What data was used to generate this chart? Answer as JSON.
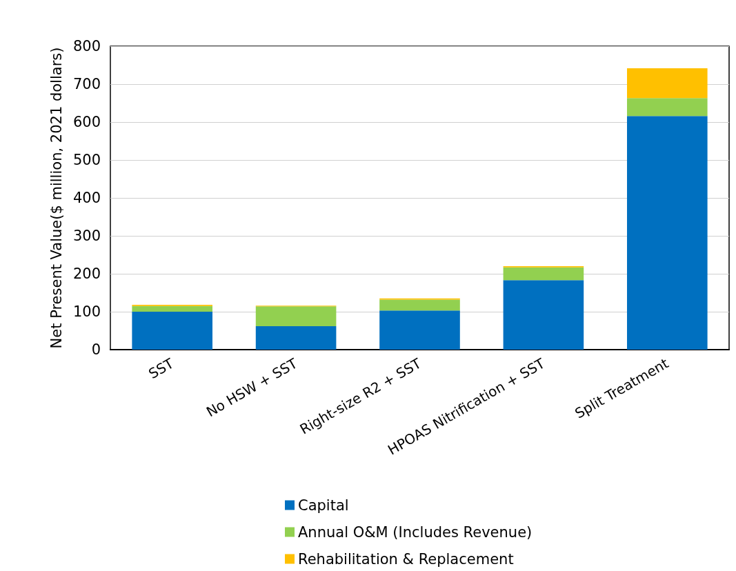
{
  "chart_data": {
    "type": "bar",
    "stacked": true,
    "ylabel": "Net Present Value($ million, 2021 dollars)",
    "categories": [
      "SST",
      "No HSW + SST",
      "Right-size R2 + SST",
      "HPOAS Nitrification + SST",
      "Split Treatment"
    ],
    "series": [
      {
        "name": "Capital",
        "color": "#0070c0",
        "values": [
          100,
          62,
          103,
          183,
          616
        ]
      },
      {
        "name": "Annual O&M (Includes Revenue)",
        "color": "#92d050",
        "values": [
          15,
          52,
          29,
          34,
          47
        ]
      },
      {
        "name": "Rehabilitation & Replacement",
        "color": "#ffc000",
        "values": [
          3,
          2,
          3,
          3,
          79
        ]
      }
    ],
    "ylim": [
      0,
      800
    ],
    "yticks": [
      0,
      100,
      200,
      300,
      400,
      500,
      600,
      700,
      800
    ],
    "grid": "y",
    "legend": "bottom"
  }
}
